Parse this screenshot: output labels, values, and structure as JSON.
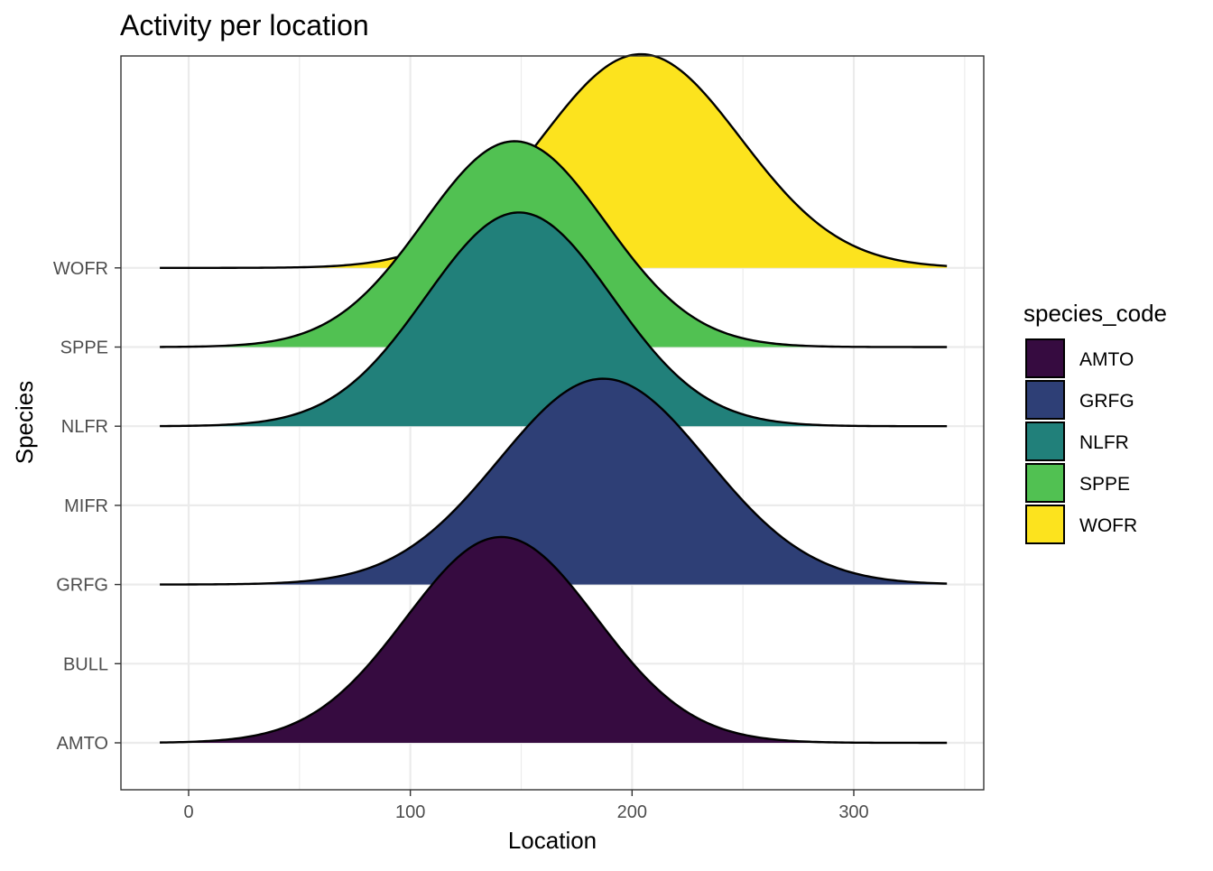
{
  "chart_data": {
    "type": "ridgeline",
    "title": "Activity per location",
    "xlabel": "Location",
    "ylabel": "Species",
    "xlim": [
      -30,
      360
    ],
    "x_ticks": [
      0,
      100,
      200,
      300
    ],
    "x_tick_labels": [
      "0",
      "100",
      "200",
      "300"
    ],
    "categories": [
      "AMTO",
      "BULL",
      "GRFG",
      "MIFR",
      "NLFR",
      "SPPE",
      "WOFR"
    ],
    "density_x_range": [
      -13,
      342
    ],
    "grid": true,
    "legend": {
      "title": "species_code",
      "position": "right",
      "entries": [
        "AMTO",
        "GRFG",
        "NLFR",
        "SPPE",
        "WOFR"
      ]
    },
    "series": [
      {
        "name": "AMTO",
        "category": "AMTO",
        "mean": 141,
        "sd": 43,
        "peak_height": 2.6,
        "color": "#360B40"
      },
      {
        "name": "GRFG",
        "category": "GRFG",
        "mean": 187,
        "sd": 47,
        "peak_height": 2.6,
        "color": "#2E3F76"
      },
      {
        "name": "NLFR",
        "category": "NLFR",
        "mean": 149,
        "sd": 42,
        "peak_height": 2.7,
        "color": "#21807A"
      },
      {
        "name": "SPPE",
        "category": "SPPE",
        "mean": 147,
        "sd": 41,
        "peak_height": 2.6,
        "color": "#51C152"
      },
      {
        "name": "WOFR",
        "category": "WOFR",
        "mean": 204,
        "sd": 45,
        "peak_height": 2.7,
        "color": "#FCE31E"
      }
    ]
  }
}
